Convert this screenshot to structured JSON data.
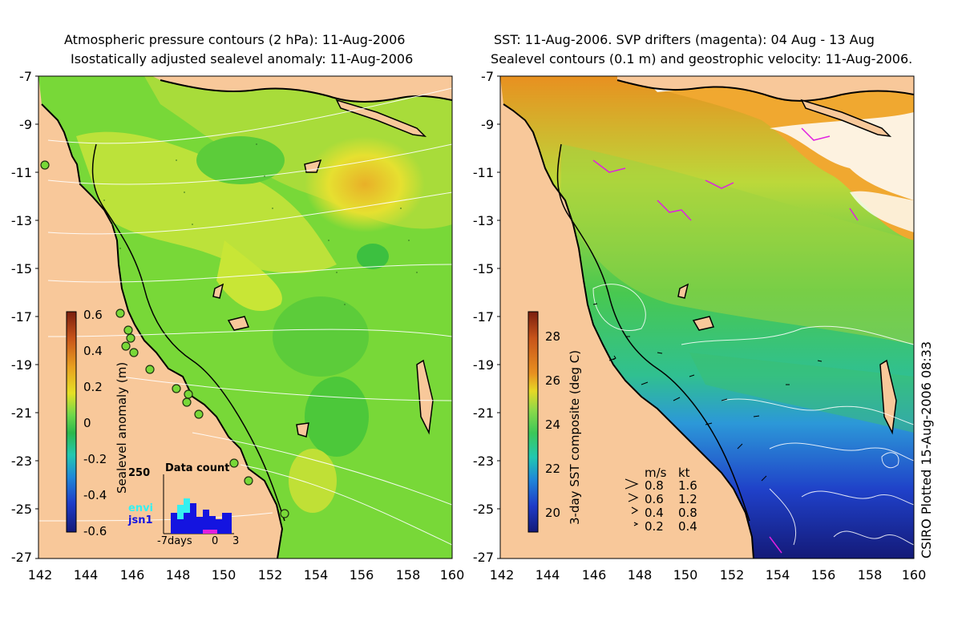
{
  "left_panel": {
    "title_line1": "Atmospheric pressure contours (2 hPa): 11-Aug-2006",
    "title_line2": "Isostatically adjusted sealevel anomaly: 11-Aug-2006",
    "colorbar": {
      "label": "Sealevel anomaly (m)",
      "ticks": [
        "0.6",
        "0.4",
        "0.2",
        "0",
        "-0.2",
        "-0.4",
        "-0.6"
      ],
      "colors": [
        "#7a1e0e",
        "#c8541a",
        "#e8a020",
        "#e6e025",
        "#6ed84a",
        "#2cb84c",
        "#22c8b0",
        "#1f88d8",
        "#1f3cc8",
        "#141a78"
      ]
    },
    "histogram": {
      "title": "Data count",
      "ymax_label": "250",
      "series": [
        {
          "name": "envi",
          "color": "#35f0f0"
        },
        {
          "name": "jsn1",
          "color": "#1414e0"
        }
      ],
      "xticks": [
        "-7days",
        "0",
        "3"
      ]
    }
  },
  "right_panel": {
    "title_line1": "SST: 11-Aug-2006. SVP drifters (magenta): 04 Aug - 13 Aug",
    "title_line2": "Sealevel contours (0.1 m) and geostrophic velocity: 11-Aug-2006.",
    "colorbar": {
      "label": "3-day SST composite (deg C)",
      "ticks": [
        "28",
        "26",
        "24",
        "22",
        "20"
      ],
      "colors": [
        "#7a1e0e",
        "#c8541a",
        "#e89020",
        "#e6d825",
        "#8ad84a",
        "#3cc858",
        "#22c8b0",
        "#1f88d8",
        "#1f3cc8",
        "#141a78"
      ]
    },
    "velocity_legend": {
      "headers": [
        "m/s",
        "kt"
      ],
      "rows": [
        {
          "ms": "0.8",
          "kt": "1.6"
        },
        {
          "ms": "0.6",
          "kt": "1.2"
        },
        {
          "ms": "0.4",
          "kt": "0.8"
        },
        {
          "ms": "0.2",
          "kt": "0.4"
        }
      ]
    }
  },
  "axes": {
    "y_ticks": [
      "-7",
      "-9",
      "-11",
      "-13",
      "-15",
      "-17",
      "-19",
      "-21",
      "-23",
      "-25",
      "-27"
    ],
    "x_ticks": [
      "142",
      "144",
      "146",
      "148",
      "150",
      "152",
      "154",
      "156",
      "158",
      "160"
    ]
  },
  "credit": "CSIRO Plotted 15-Aug-2006 08:33",
  "colors": {
    "land": "#f8c89a",
    "ocean_green": "#78d838",
    "ocean_yellow": "#dce830",
    "coast": "#000000",
    "contour": "#ffffff",
    "drifter": "#e020e0"
  }
}
